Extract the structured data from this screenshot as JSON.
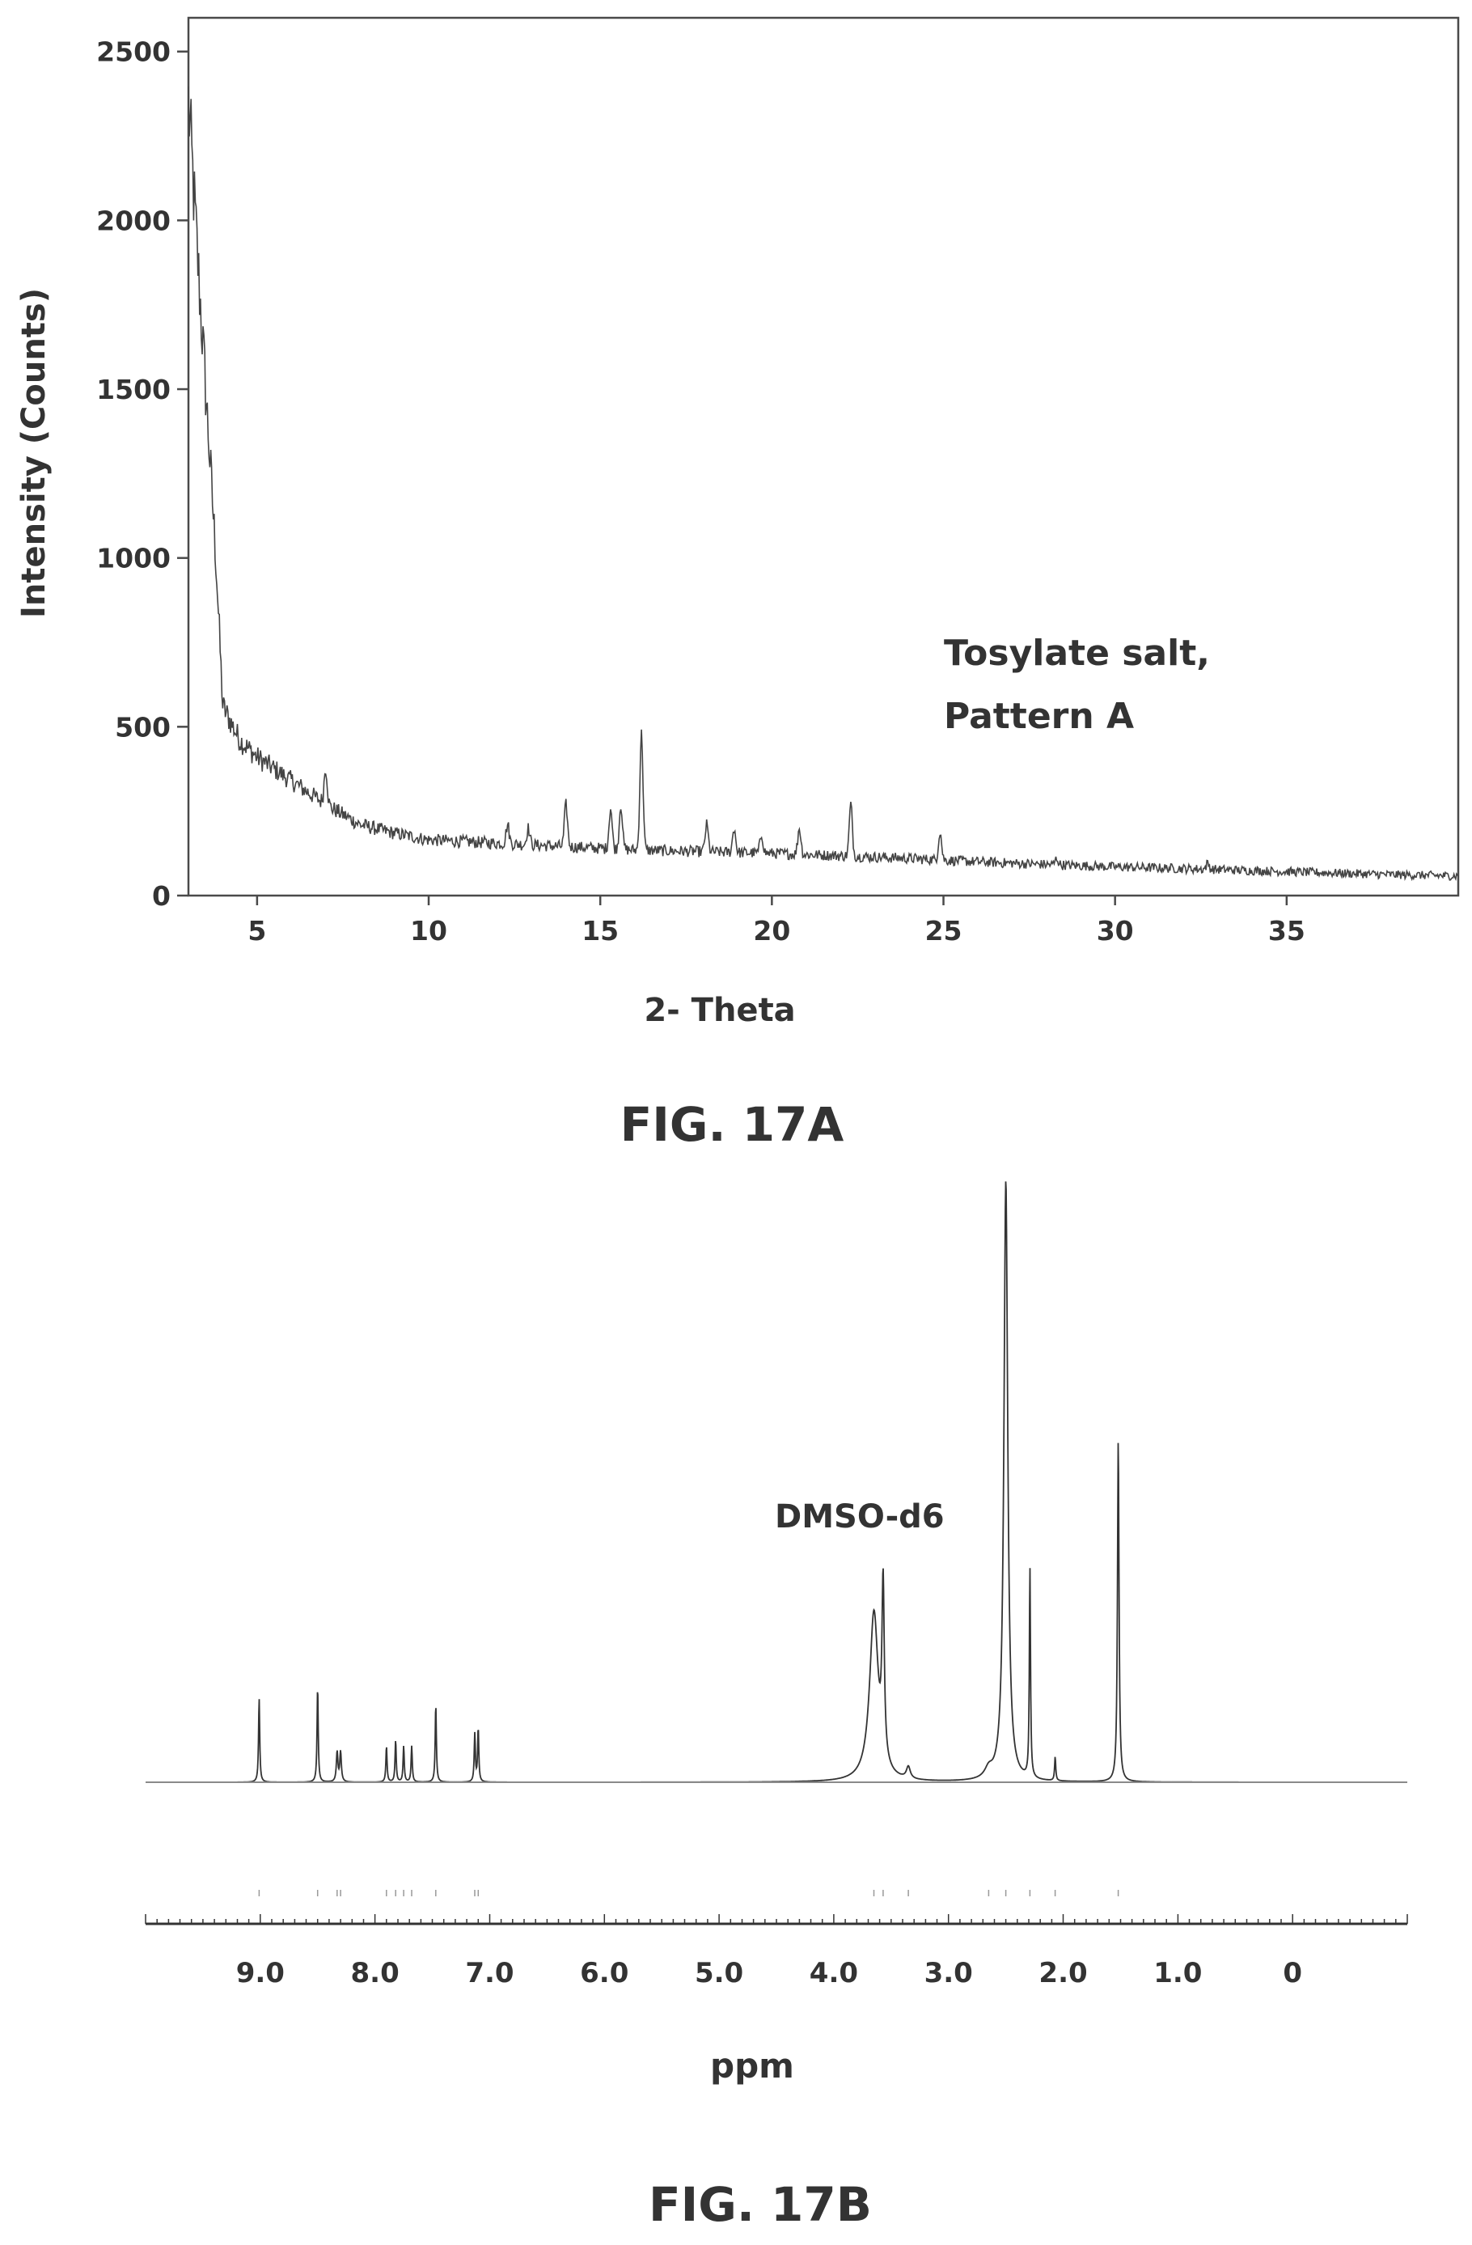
{
  "chart_data": [
    {
      "type": "line",
      "subtype": "xrpd",
      "title": "",
      "xlabel": "2- Theta",
      "ylabel": "Intensity (Counts)",
      "xlim": [
        3,
        40
      ],
      "ylim": [
        0,
        2600
      ],
      "x_ticks": [
        5,
        10,
        15,
        20,
        25,
        30,
        35
      ],
      "y_ticks": [
        0,
        500,
        1000,
        1500,
        2000,
        2500
      ],
      "grid": false,
      "annotation": [
        "Tosylate salt,",
        "Pattern A"
      ],
      "caption": "FIG. 17A",
      "baseline": [
        [
          3.0,
          2350
        ],
        [
          3.2,
          2000
        ],
        [
          3.5,
          1500
        ],
        [
          3.8,
          1000
        ],
        [
          4.0,
          560
        ],
        [
          4.5,
          460
        ],
        [
          5.0,
          410
        ],
        [
          6.0,
          340
        ],
        [
          7.0,
          270
        ],
        [
          8.0,
          210
        ],
        [
          9.0,
          185
        ],
        [
          10.0,
          165
        ],
        [
          12.0,
          155
        ],
        [
          14.0,
          145
        ],
        [
          16.0,
          135
        ],
        [
          18.0,
          130
        ],
        [
          20.0,
          125
        ],
        [
          22.0,
          118
        ],
        [
          24.0,
          110
        ],
        [
          26.0,
          100
        ],
        [
          28.0,
          92
        ],
        [
          30.0,
          85
        ],
        [
          32.0,
          80
        ],
        [
          34.0,
          74
        ],
        [
          36.0,
          68
        ],
        [
          38.0,
          62
        ],
        [
          40.0,
          58
        ]
      ],
      "peaks": [
        {
          "x": 7.0,
          "y": 380
        },
        {
          "x": 12.3,
          "y": 210
        },
        {
          "x": 12.9,
          "y": 200
        },
        {
          "x": 14.0,
          "y": 270
        },
        {
          "x": 15.3,
          "y": 260
        },
        {
          "x": 15.6,
          "y": 270
        },
        {
          "x": 16.2,
          "y": 480
        },
        {
          "x": 18.1,
          "y": 210
        },
        {
          "x": 18.9,
          "y": 200
        },
        {
          "x": 19.7,
          "y": 180
        },
        {
          "x": 20.8,
          "y": 200
        },
        {
          "x": 22.3,
          "y": 270
        },
        {
          "x": 24.9,
          "y": 190
        },
        {
          "x": 28.3,
          "y": 110
        },
        {
          "x": 32.7,
          "y": 95
        }
      ]
    },
    {
      "type": "line",
      "subtype": "nmr",
      "title": "",
      "xlabel": "ppm",
      "ylabel": "",
      "xlim": [
        10.0,
        -1.0
      ],
      "ylim": [
        0,
        100
      ],
      "x_ticks": [
        9.0,
        8.0,
        7.0,
        6.0,
        5.0,
        4.0,
        3.0,
        2.0,
        1.0,
        0
      ],
      "x_tick_labels": [
        "9.0",
        "8.0",
        "7.0",
        "6.0",
        "5.0",
        "4.0",
        "3.0",
        "2.0",
        "1.0",
        "0"
      ],
      "grid": false,
      "annotation": "DMSO-d6",
      "caption": "FIG. 17B",
      "peaks": [
        {
          "ppm": 9.01,
          "height": 14,
          "width": 0.006
        },
        {
          "ppm": 8.5,
          "height": 16,
          "width": 0.006
        },
        {
          "ppm": 8.33,
          "height": 5,
          "width": 0.008
        },
        {
          "ppm": 8.3,
          "height": 5,
          "width": 0.008
        },
        {
          "ppm": 7.9,
          "height": 6,
          "width": 0.006
        },
        {
          "ppm": 7.82,
          "height": 7,
          "width": 0.006
        },
        {
          "ppm": 7.75,
          "height": 6,
          "width": 0.006
        },
        {
          "ppm": 7.68,
          "height": 6,
          "width": 0.006
        },
        {
          "ppm": 7.47,
          "height": 13,
          "width": 0.006
        },
        {
          "ppm": 7.13,
          "height": 8,
          "width": 0.006
        },
        {
          "ppm": 7.1,
          "height": 9,
          "width": 0.006
        },
        {
          "ppm": 3.65,
          "height": 28,
          "width": 0.045
        },
        {
          "ppm": 3.57,
          "height": 29,
          "width": 0.012
        },
        {
          "ppm": 3.35,
          "height": 2,
          "width": 0.02
        },
        {
          "ppm": 2.65,
          "height": 1.5,
          "width": 0.04
        },
        {
          "ppm": 2.5,
          "height": 100,
          "width": 0.02
        },
        {
          "ppm": 2.29,
          "height": 35,
          "width": 0.006
        },
        {
          "ppm": 2.07,
          "height": 4,
          "width": 0.006
        },
        {
          "ppm": 1.52,
          "height": 57,
          "width": 0.008
        }
      ]
    }
  ]
}
